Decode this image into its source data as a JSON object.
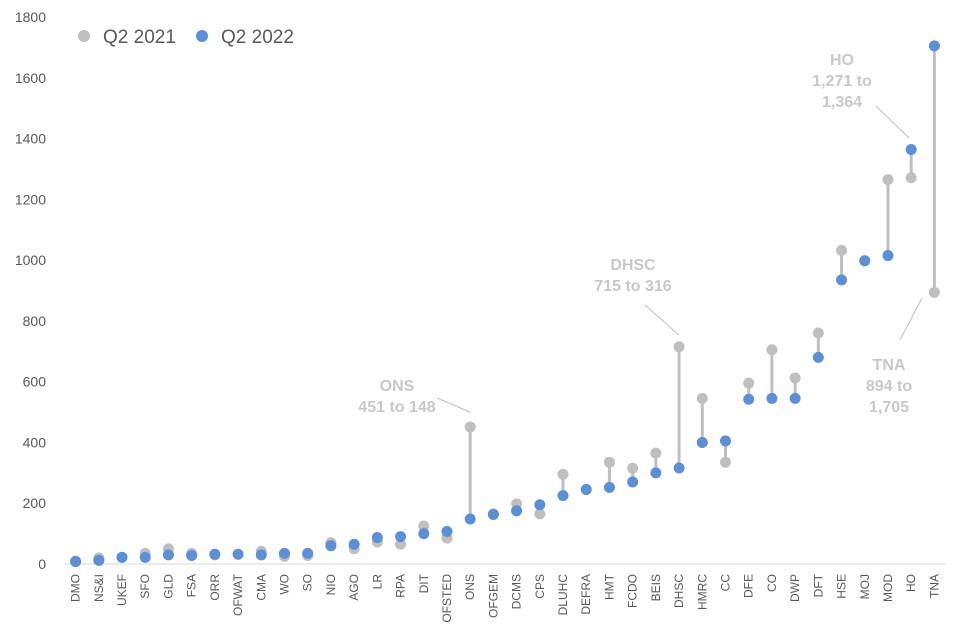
{
  "chart_data": {
    "type": "scatter",
    "subtype": "dumbbell",
    "ylim": [
      0,
      1800
    ],
    "yticks": [
      0,
      200,
      400,
      600,
      800,
      1000,
      1200,
      1400,
      1600,
      1800
    ],
    "grid": false,
    "legend_position": "top-left",
    "colors": {
      "Q2 2021": "#bfbfbf",
      "Q2 2022": "#5b8fd6",
      "connector": "#bfbfbf",
      "annotation": "#c8c8c8"
    },
    "categories": [
      "DMO",
      "NS&I",
      "UKEF",
      "SFO",
      "GLD",
      "FSA",
      "ORR",
      "OFWAT",
      "CMA",
      "WO",
      "SO",
      "NIO",
      "AGO",
      "LR",
      "RPA",
      "DIT",
      "OFSTED",
      "ONS",
      "OFGEM",
      "DCMS",
      "CPS",
      "DLUHC",
      "DEFRA",
      "HMT",
      "FCDO",
      "BEIS",
      "DHSC",
      "HMRC",
      "CC",
      "DFE",
      "CO",
      "DWP",
      "DFT",
      "HSE",
      "MOJ",
      "MOD",
      "HO",
      "TNA"
    ],
    "series": [
      {
        "name": "Q2 2021",
        "values": [
          10,
          20,
          22,
          35,
          50,
          35,
          30,
          32,
          42,
          25,
          28,
          70,
          50,
          72,
          65,
          125,
          85,
          451,
          165,
          198,
          165,
          295,
          245,
          335,
          315,
          365,
          715,
          545,
          335,
          595,
          705,
          612,
          760,
          1032,
          998,
          1265,
          1271,
          894
        ]
      },
      {
        "name": "Q2 2022",
        "values": [
          8,
          12,
          22,
          22,
          30,
          28,
          32,
          32,
          30,
          35,
          35,
          60,
          65,
          87,
          90,
          100,
          107,
          148,
          163,
          175,
          195,
          225,
          245,
          252,
          270,
          300,
          316,
          400,
          405,
          542,
          545,
          545,
          680,
          935,
          998,
          1015,
          1364,
          1705
        ]
      }
    ],
    "annotations": [
      {
        "category": "ONS",
        "lines": [
          "ONS",
          "451 to 148"
        ]
      },
      {
        "category": "DHSC",
        "lines": [
          "DHSC",
          "715 to 316"
        ]
      },
      {
        "category": "HO",
        "lines": [
          "HO",
          "1,271 to",
          "1,364"
        ]
      },
      {
        "category": "TNA",
        "lines": [
          "TNA",
          "894 to",
          "1,705"
        ]
      }
    ]
  }
}
